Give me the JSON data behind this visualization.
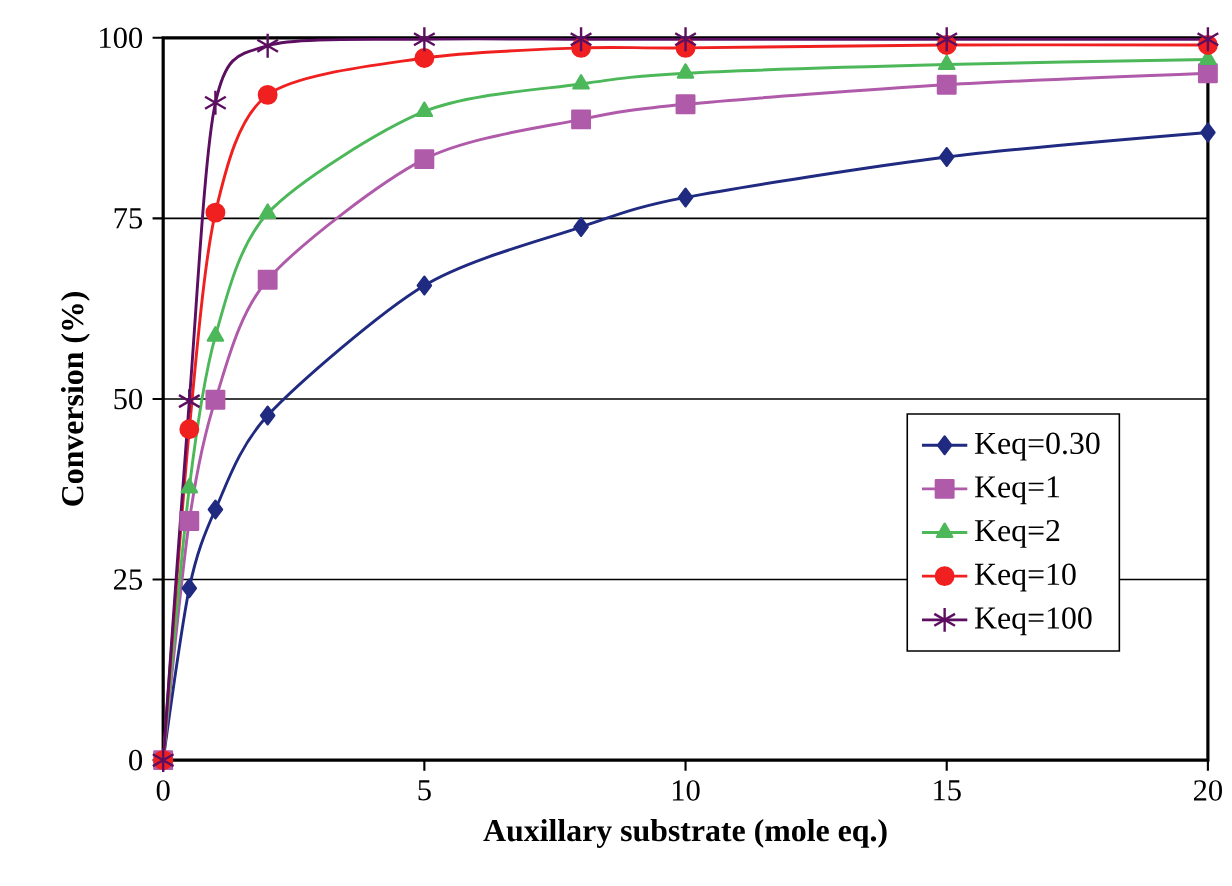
{
  "chart_data": {
    "type": "line",
    "xlabel": "Auxillary substrate (mole eq.)",
    "ylabel": "Conversion (%)",
    "x": [
      0,
      0.5,
      1,
      2,
      5,
      8,
      10,
      15,
      20
    ],
    "series": [
      {
        "name": "Keq=0.30",
        "color": "#1f2a80",
        "marker": "diamond",
        "values": [
          0,
          23.8,
          34.7,
          47.7,
          65.7,
          73.8,
          77.9,
          83.5,
          86.9
        ]
      },
      {
        "name": "Keq=1",
        "color": "#b05aaa",
        "marker": "square",
        "values": [
          0,
          33.1,
          49.9,
          66.5,
          83.2,
          88.7,
          90.8,
          93.5,
          95.1
        ]
      },
      {
        "name": "Keq=2",
        "color": "#4cb85a",
        "marker": "triangle",
        "values": [
          0,
          37.7,
          58.7,
          75.7,
          89.8,
          93.6,
          95.1,
          96.3,
          97
        ]
      },
      {
        "name": "Keq=10",
        "color": "#f02020",
        "marker": "circle",
        "values": [
          0,
          45.8,
          75.8,
          92.1,
          97.2,
          98.6,
          98.6,
          99,
          99
        ]
      },
      {
        "name": "Keq=100",
        "color": "#5c0f60",
        "marker": "cross",
        "values": [
          0,
          49.7,
          91,
          98.9,
          99.8,
          99.8,
          99.8,
          99.8,
          99.8
        ]
      }
    ],
    "xlim": [
      0,
      20
    ],
    "xticks": [
      0,
      5,
      10,
      15,
      20
    ],
    "ylim": [
      0,
      100
    ],
    "yticks": [
      0,
      25,
      50,
      75,
      100
    ],
    "grid": "y",
    "legend": "bottom right",
    "line_style": "solid"
  }
}
